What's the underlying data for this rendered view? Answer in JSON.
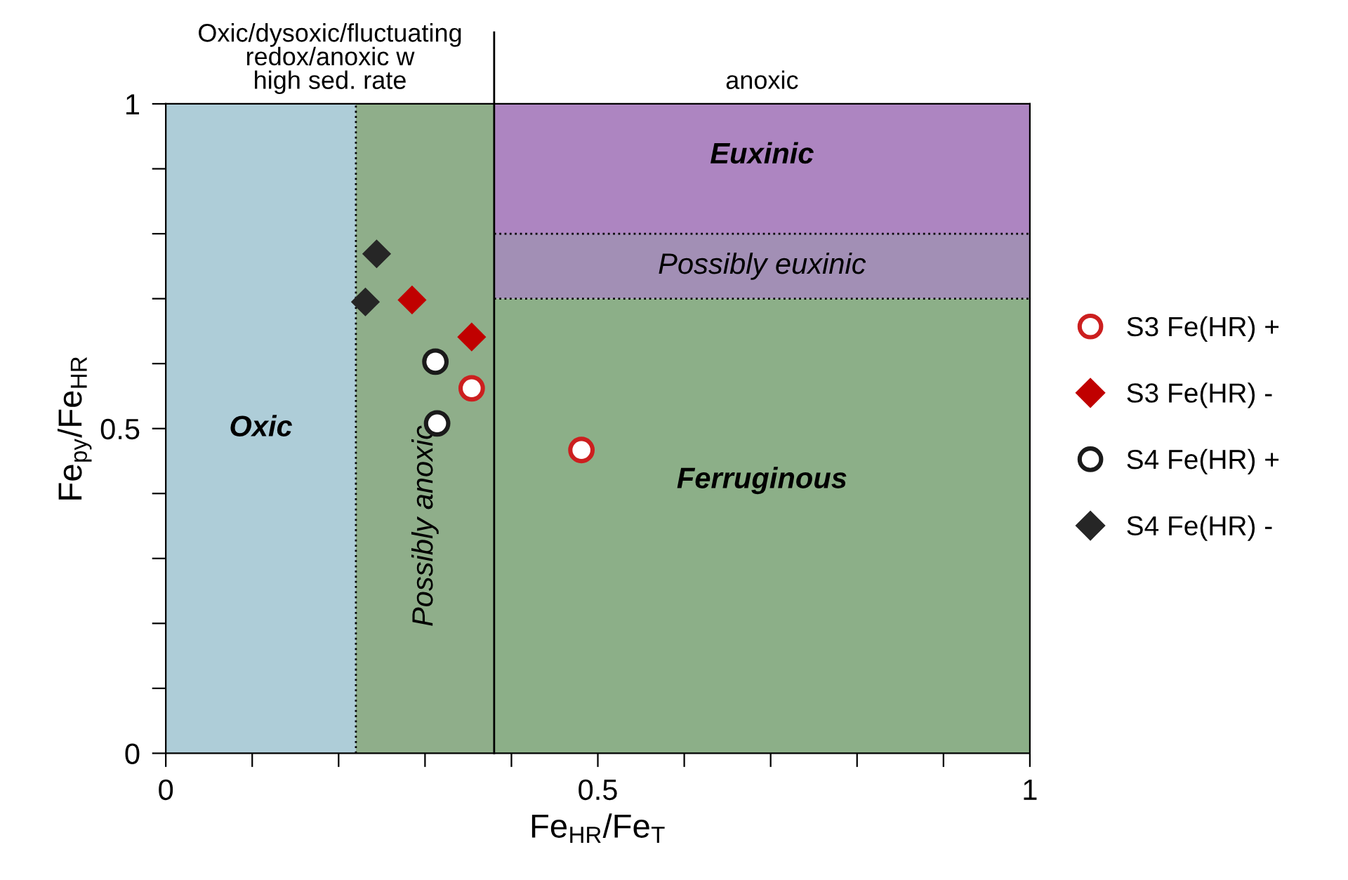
{
  "chart_data": {
    "type": "scatter",
    "xlabel": "Fe$_{HR}$/Fe$_{T}$",
    "ylabel": "Fe$_{py}$/Fe$_{HR}$",
    "xlim": [
      0,
      1
    ],
    "ylim": [
      0,
      1
    ],
    "xticks": [
      0,
      {
        "value": 0.1,
        "label": null
      },
      {
        "value": 0.2,
        "label": null
      },
      {
        "value": 0.3,
        "label": null
      },
      {
        "value": 0.4,
        "label": null
      },
      0.5,
      {
        "value": 0.6,
        "label": null
      },
      {
        "value": 0.7,
        "label": null
      },
      {
        "value": 0.8,
        "label": null
      },
      {
        "value": 0.9,
        "label": null
      },
      1
    ],
    "yticks": [
      0,
      {
        "value": 0.1,
        "label": null
      },
      {
        "value": 0.2,
        "label": null
      },
      {
        "value": 0.3,
        "label": null
      },
      {
        "value": 0.4,
        "label": null
      },
      0.5,
      {
        "value": 0.6,
        "label": null
      },
      {
        "value": 0.7,
        "label": null
      },
      {
        "value": 0.8,
        "label": null
      },
      {
        "value": 0.9,
        "label": null
      },
      1
    ],
    "grid": false,
    "legend": "right",
    "bands": [
      {
        "axis": "x",
        "from": 0,
        "to": 0.22,
        "label": "Oxic",
        "color": "#aecdd8"
      },
      {
        "axis": "x",
        "from": 0.22,
        "to": 0.38,
        "label": "Possibly anoxic",
        "color": "#8fae8a"
      },
      {
        "axis": "y",
        "from": 0,
        "to": 0.7,
        "label": "Ferruginous",
        "color": "#8caf88"
      },
      {
        "axis": "y",
        "from": 0.7,
        "to": 0.8,
        "label": "Possibly euxinic",
        "color": "#a28fb5"
      },
      {
        "axis": "y",
        "from": 0.8,
        "to": 1,
        "label": "Euxinic",
        "color": "#ad85c1"
      }
    ],
    "ref_lines": [
      {
        "axis": "x",
        "value": 0.22,
        "line_style": "dotted"
      },
      {
        "axis": "x",
        "value": 0.38,
        "line_style": "solid"
      },
      {
        "axis": "y",
        "value": 0.7,
        "line_style": "dotted"
      },
      {
        "axis": "y",
        "value": 0.8,
        "line_style": "dotted"
      }
    ],
    "annotations": [
      "Oxic/dysoxic/fluctuating\nredox/anoxic w\nhigh sed. rate",
      "anoxic"
    ],
    "series": [
      {
        "name": "S3 Fe(HR) +",
        "color": "#cc1f1f",
        "marker": "circle",
        "x": [
          0.354,
          0.481
        ],
        "values": [
          0.562,
          0.467
        ]
      },
      {
        "name": "S3 Fe(HR) -",
        "color": "#c00000",
        "marker": "diamond",
        "x": [
          0.285,
          0.354
        ],
        "values": [
          0.698,
          0.641
        ]
      },
      {
        "name": "S4 Fe(HR) +",
        "color": "#1a1a1a",
        "marker": "circle",
        "x": [
          0.312,
          0.314
        ],
        "values": [
          0.603,
          0.508
        ]
      },
      {
        "name": "S4 Fe(HR) -",
        "color": "#262626",
        "marker": "diamond",
        "x": [
          0.244,
          0.231
        ],
        "values": [
          0.769,
          0.695
        ]
      }
    ]
  }
}
